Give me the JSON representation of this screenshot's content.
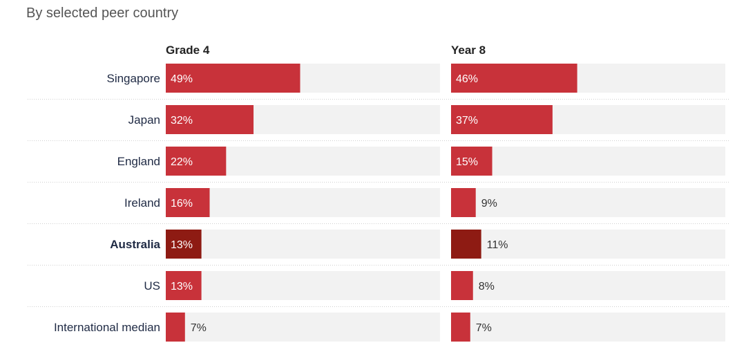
{
  "subtitle": "By selected peer country",
  "colors": {
    "bar": "#c8323a",
    "bar_highlight": "#8e1b13",
    "track": "#f2f2f2",
    "separator": "#cfcfcf"
  },
  "chart_data": {
    "type": "bar",
    "orientation": "horizontal",
    "title": "",
    "subtitle": "By selected peer country",
    "categories": [
      "Singapore",
      "Japan",
      "England",
      "Ireland",
      "Australia",
      "US",
      "International median"
    ],
    "highlight_category": "Australia",
    "unit": "%",
    "xlim": [
      0,
      100
    ],
    "grid": false,
    "series": [
      {
        "name": "Grade 4",
        "values": [
          49,
          32,
          22,
          16,
          13,
          13,
          7
        ]
      },
      {
        "name": "Year 8",
        "values": [
          46,
          37,
          15,
          9,
          11,
          8,
          7
        ]
      }
    ]
  }
}
